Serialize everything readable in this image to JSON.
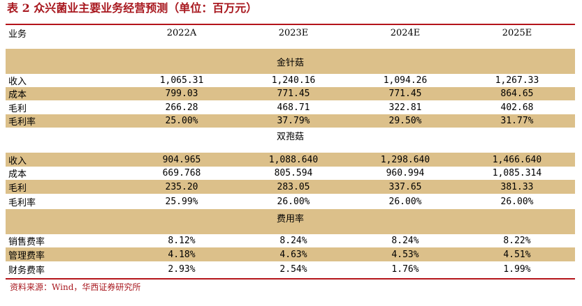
{
  "title": "表 2  众兴菌业主要业务经营预测（单位：百万元）",
  "header": [
    "业务",
    "2022A",
    "2023E",
    "2024E",
    "2025E"
  ],
  "sections": [
    {
      "name": "金针菇",
      "rows": [
        {
          "label": "收入",
          "values": [
            "1,065.31",
            "1,240.16",
            "1,094.26",
            "1,267.33"
          ]
        },
        {
          "label": "成本",
          "values": [
            "799.03",
            "771.45",
            "771.45",
            "864.65"
          ]
        },
        {
          "label": "毛利",
          "values": [
            "266.28",
            "468.71",
            "322.81",
            "402.68"
          ]
        },
        {
          "label": "毛利率",
          "values": [
            "25.00%",
            "37.79%",
            "29.50%",
            "31.77%"
          ]
        }
      ]
    },
    {
      "name": "双孢菇",
      "rows": [
        {
          "label": "收入",
          "values": [
            "904.965",
            "1,088.640",
            "1,298.640",
            "1,466.640"
          ]
        },
        {
          "label": "成本",
          "values": [
            "669.768",
            "805.594",
            "960.994",
            "1,085.314"
          ]
        },
        {
          "label": "毛利",
          "values": [
            "235.20",
            "283.05",
            "337.65",
            "381.33"
          ]
        },
        {
          "label": "毛利率",
          "values": [
            "25.99%",
            "26.00%",
            "26.00%",
            "26.00%"
          ]
        }
      ]
    },
    {
      "name": "费用率",
      "rows": [
        {
          "label": "销售费率",
          "values": [
            "8.12%",
            "8.24%",
            "8.24%",
            "8.22%"
          ]
        },
        {
          "label": "管理费率",
          "values": [
            "4.18%",
            "4.63%",
            "4.53%",
            "4.51%"
          ]
        },
        {
          "label": "财务费率",
          "values": [
            "2.93%",
            "2.54%",
            "1.76%",
            "1.99%"
          ]
        }
      ]
    }
  ],
  "source": "资料来源：Wind，华西证券研究所",
  "colors": {
    "accent": "#b4141a",
    "band": "#dcc08a"
  }
}
